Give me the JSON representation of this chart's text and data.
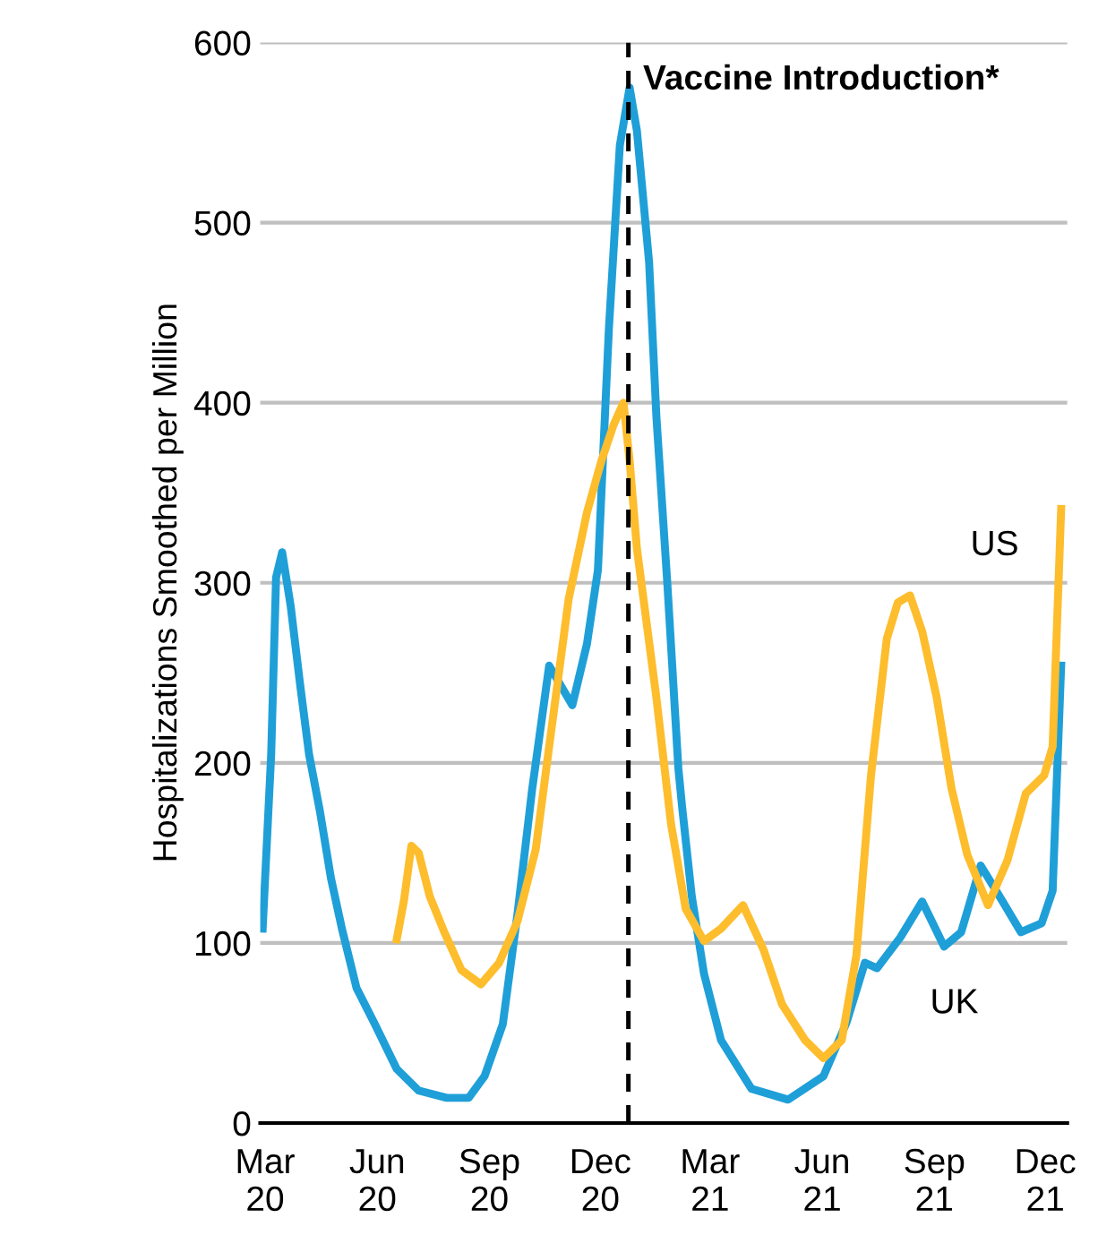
{
  "chart_data": {
    "type": "line",
    "ylabel": "Hospitalizations Smoothed per Million",
    "xlim": [
      "2020-02-26",
      "2021-12-19"
    ],
    "ylim": [
      0,
      600
    ],
    "yticks": [
      0,
      100,
      200,
      300,
      400,
      500,
      600
    ],
    "xticks": [
      {
        "value": "2020-03-01",
        "label": "Mar\n20"
      },
      {
        "value": "2020-06-01",
        "label": "Jun\n20"
      },
      {
        "value": "2020-09-01",
        "label": "Sep\n20"
      },
      {
        "value": "2020-12-01",
        "label": "Dec\n20"
      },
      {
        "value": "2021-03-01",
        "label": "Mar\n21"
      },
      {
        "value": "2021-06-01",
        "label": "Jun\n21"
      },
      {
        "value": "2021-09-01",
        "label": "Sep\n21"
      },
      {
        "value": "2021-12-01",
        "label": "Dec\n21"
      }
    ],
    "grid": "y",
    "legend": false,
    "marker": "none",
    "line_style": "solid",
    "ref_lines": [
      {
        "axis": "x",
        "value": "2020-12-24",
        "label": "Vaccine Introduction*",
        "color": "#000000",
        "line_style": "dashed"
      }
    ],
    "series": [
      {
        "name": "UK",
        "color": "#1f9fd8",
        "x": [
          "2020-02-28",
          "2020-03-06",
          "2020-03-10",
          "2020-03-15",
          "2020-03-22",
          "2020-03-30",
          "2020-04-06",
          "2020-04-15",
          "2020-04-24",
          "2020-05-03",
          "2020-05-15",
          "2020-05-30",
          "2020-06-17",
          "2020-07-05",
          "2020-07-28",
          "2020-08-15",
          "2020-08-28",
          "2020-09-12",
          "2020-09-24",
          "2020-10-06",
          "2020-10-20",
          "2020-11-08",
          "2020-11-20",
          "2020-11-29",
          "2020-12-08",
          "2020-12-17",
          "2020-12-25",
          "2020-12-31",
          "2021-01-10",
          "2021-01-16",
          "2021-01-25",
          "2021-02-03",
          "2021-02-06",
          "2021-02-14",
          "2021-02-24",
          "2021-03-10",
          "2021-04-04",
          "2021-05-04",
          "2021-06-02",
          "2021-06-21",
          "2021-07-06",
          "2021-07-16",
          "2021-08-04",
          "2021-08-22",
          "2021-09-09",
          "2021-09-23",
          "2021-10-09",
          "2021-10-27",
          "2021-11-11",
          "2021-11-28",
          "2021-12-07",
          "2021-12-14"
        ],
        "values": [
          108,
          205,
          303,
          317,
          287,
          242,
          205,
          173,
          136,
          108,
          75,
          55,
          30,
          18,
          14,
          14,
          26,
          55,
          116,
          185,
          254,
          232,
          266,
          307,
          441,
          543,
          575,
          551,
          478,
          392,
          299,
          197,
          176,
          126,
          83,
          46,
          19,
          13,
          26,
          56,
          89,
          86,
          103,
          123,
          98,
          106,
          143,
          123,
          106,
          111,
          129,
          254
        ]
      },
      {
        "name": "US",
        "color": "#fdbd2c",
        "x": [
          "2020-06-17",
          "2020-06-23",
          "2020-06-29",
          "2020-07-05",
          "2020-07-14",
          "2020-07-26",
          "2020-08-09",
          "2020-08-25",
          "2020-09-09",
          "2020-09-24",
          "2020-10-09",
          "2020-10-20",
          "2020-11-05",
          "2020-11-20",
          "2020-12-02",
          "2020-12-12",
          "2020-12-20",
          "2020-12-25",
          "2020-12-31",
          "2021-01-16",
          "2021-01-28",
          "2021-02-09",
          "2021-02-24",
          "2021-03-10",
          "2021-03-28",
          "2021-04-14",
          "2021-04-29",
          "2021-05-18",
          "2021-06-02",
          "2021-06-17",
          "2021-06-29",
          "2021-07-11",
          "2021-07-24",
          "2021-08-02",
          "2021-08-12",
          "2021-08-22",
          "2021-09-03",
          "2021-09-15",
          "2021-09-28",
          "2021-10-15",
          "2021-10-31",
          "2021-11-15",
          "2021-11-30",
          "2021-12-07",
          "2021-12-14"
        ],
        "values": [
          102,
          124,
          154,
          150,
          126,
          106,
          85,
          77,
          89,
          112,
          152,
          209,
          291,
          339,
          368,
          388,
          400,
          368,
          319,
          236,
          166,
          119,
          101,
          108,
          121,
          96,
          66,
          46,
          36,
          46,
          93,
          193,
          269,
          289,
          293,
          273,
          236,
          186,
          149,
          121,
          146,
          183,
          193,
          209,
          341
        ]
      }
    ]
  }
}
